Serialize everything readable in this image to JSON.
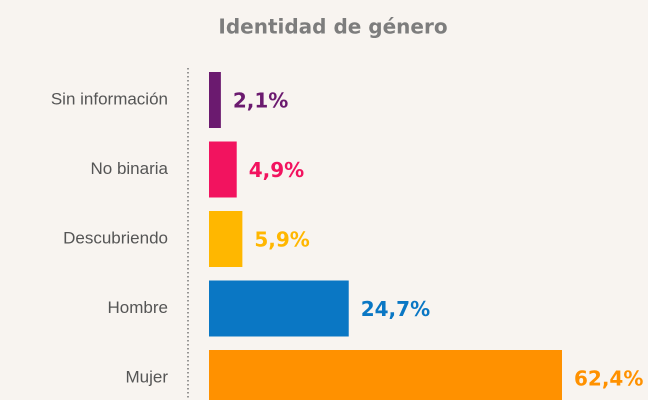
{
  "chart_data": {
    "type": "bar",
    "orientation": "horizontal",
    "title": "Identidad de género",
    "categories": [
      "Sin información",
      "No binaria",
      "Descubriendo",
      "Hombre",
      "Mujer"
    ],
    "values": [
      2.1,
      4.9,
      5.9,
      24.7,
      62.4
    ],
    "value_labels": [
      "2,1%",
      "4,9%",
      "5,9%",
      "24,7%",
      "62,4%"
    ],
    "colors": [
      "#6b1a6f",
      "#f2135f",
      "#ffb700",
      "#0a77c4",
      "#ff9100"
    ]
  }
}
